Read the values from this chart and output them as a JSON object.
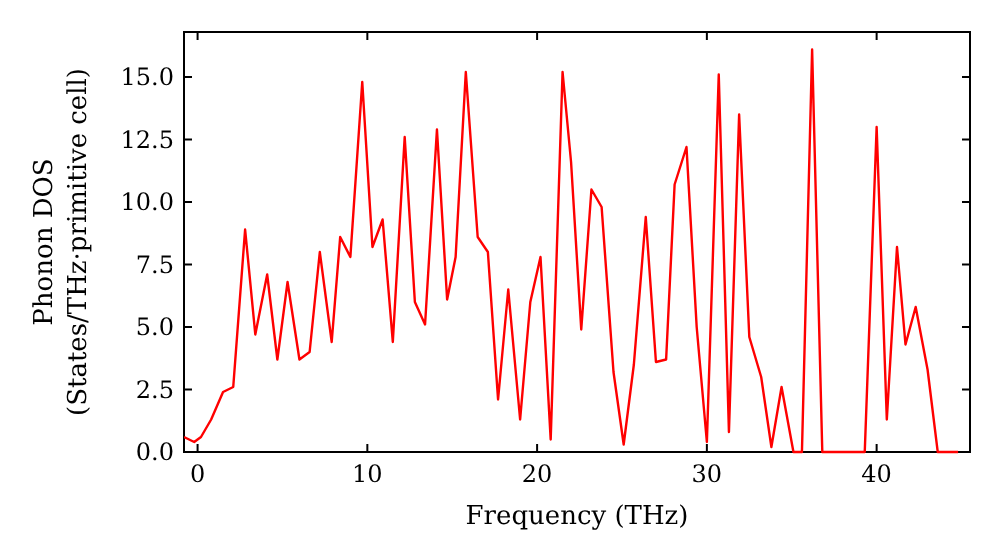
{
  "chart_data": {
    "type": "line",
    "xlabel": "Frequency (THz)",
    "ylabel": "Phonon DOS\n(States/THz·primitive cell)",
    "xlim": [
      -0.8,
      45.5
    ],
    "ylim": [
      0,
      16.8
    ],
    "xticks": [
      0,
      10,
      20,
      30,
      40
    ],
    "yticks": [
      {
        "value": 0,
        "label": "0.0"
      },
      {
        "value": 2.5,
        "label": "2.5"
      },
      {
        "value": 5,
        "label": "5.0"
      },
      {
        "value": 7.5,
        "label": "7.5"
      },
      {
        "value": 10,
        "label": "10.0"
      },
      {
        "value": 12.5,
        "label": "12.5"
      },
      {
        "value": 15,
        "label": "15.0"
      }
    ],
    "grid": false,
    "marker": "none",
    "line_style": "solid",
    "series": [
      {
        "color": "#ff0000",
        "x": [
          -0.8,
          -0.2,
          0.2,
          0.8,
          1.5,
          2.1,
          2.8,
          3.4,
          4.1,
          4.7,
          5.3,
          6.0,
          6.6,
          7.2,
          7.9,
          8.4,
          9.0,
          9.7,
          10.3,
          10.9,
          11.5,
          12.2,
          12.8,
          13.4,
          14.1,
          14.7,
          15.2,
          15.8,
          16.5,
          17.1,
          17.7,
          18.3,
          19.0,
          19.6,
          20.2,
          20.8,
          21.5,
          22.0,
          22.6,
          23.2,
          23.8,
          24.5,
          25.1,
          25.7,
          26.4,
          27.0,
          27.6,
          28.1,
          28.8,
          29.4,
          30.0,
          30.7,
          31.3,
          31.9,
          32.5,
          33.2,
          33.8,
          34.4,
          35.1,
          35.6,
          36.2,
          36.8,
          39.3,
          40.0,
          40.6,
          41.2,
          41.7,
          42.3,
          43.0,
          43.6,
          44.8
        ],
        "values": [
          0.6,
          0.4,
          0.6,
          1.3,
          2.4,
          2.6,
          8.9,
          4.7,
          7.1,
          3.7,
          6.8,
          3.7,
          4.0,
          8.0,
          4.4,
          8.6,
          7.8,
          14.8,
          8.2,
          9.3,
          4.4,
          12.6,
          6.0,
          5.1,
          12.9,
          6.1,
          7.8,
          15.2,
          8.6,
          8.0,
          2.1,
          6.5,
          1.3,
          6.0,
          7.8,
          0.5,
          15.2,
          11.6,
          4.9,
          10.5,
          9.8,
          3.2,
          0.3,
          3.5,
          9.4,
          3.6,
          3.7,
          10.7,
          12.2,
          5.0,
          0.4,
          15.1,
          0.8,
          13.5,
          4.6,
          3.0,
          0.2,
          2.6,
          0,
          0,
          16.1,
          0,
          0,
          13.0,
          1.3,
          8.2,
          4.3,
          5.8,
          3.3,
          0,
          0
        ]
      }
    ]
  }
}
